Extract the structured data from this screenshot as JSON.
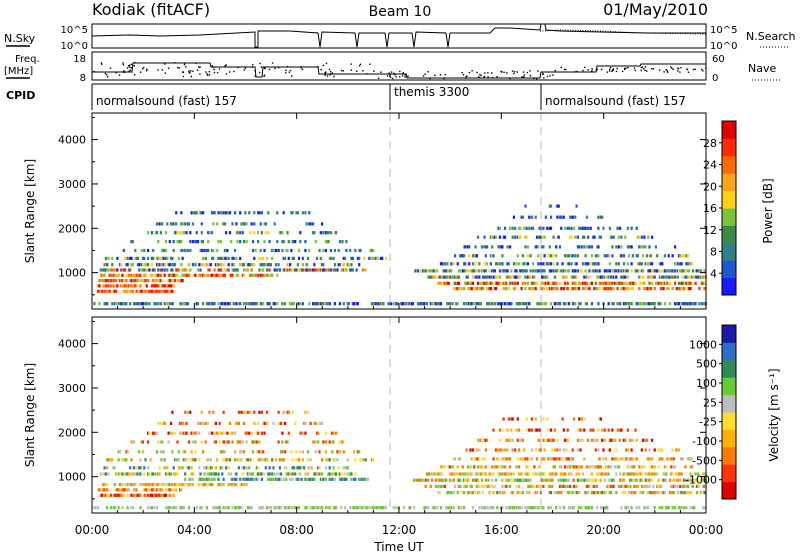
{
  "header": {
    "station": "Kodiak (fitACF)",
    "beam": "Beam 10",
    "date": "01/May/2010"
  },
  "panels": {
    "nsky": {
      "left_label": "N.Sky",
      "right_label": "N.Search",
      "left_ticks": [
        "10^5",
        "10^0"
      ],
      "right_ticks": [
        "10^5",
        "10^0"
      ]
    },
    "freq": {
      "left_label_line1": "Freq.",
      "left_label_line2": "[MHz]",
      "left_ticks": [
        "18",
        "8"
      ],
      "right_label": "Nave",
      "right_ticks": [
        "60",
        "0"
      ]
    },
    "cpid": {
      "label": "CPID",
      "segments": [
        {
          "label": "normalsound (fast) 157",
          "start": "00:00"
        },
        {
          "label": "themis 3300",
          "start": "12:00"
        },
        {
          "label": "normalsound (fast) 157",
          "start": "18:00"
        }
      ]
    }
  },
  "time_axis": {
    "title": "Time UT",
    "ticks": [
      "00:00",
      "04:00",
      "08:00",
      "12:00",
      "16:00",
      "20:00",
      "00:00"
    ]
  },
  "chart_data": [
    {
      "type": "heatmap",
      "name": "power",
      "ylabel": "Slant Range [km]",
      "yticks": [
        1000,
        2000,
        3000,
        4000
      ],
      "ylim": [
        180,
        4600
      ],
      "xlim_hours": [
        0,
        24
      ],
      "colorbar": {
        "label": "Power [dB]",
        "ticks": [
          "4",
          "8",
          "12",
          "16",
          "20",
          "24",
          "28"
        ],
        "colors": [
          "#1a1aff",
          "#1f56d4",
          "#2e7f8a",
          "#3c8a4a",
          "#7ac43a",
          "#ffd11a",
          "#ffa51a",
          "#ff6a00",
          "#ff2a00",
          "#e00000"
        ]
      },
      "bands": [
        {
          "range_km": 300,
          "hours": [
            0,
            24
          ],
          "density": 0.55,
          "level": [
            0,
            4
          ]
        },
        {
          "range_km": 580,
          "hours": [
            0.2,
            3.2
          ],
          "density": 0.6,
          "level": [
            6,
            9
          ]
        },
        {
          "range_km": 700,
          "hours": [
            0.2,
            3.2
          ],
          "density": 0.65,
          "level": [
            6,
            9
          ]
        },
        {
          "range_km": 820,
          "hours": [
            0.2,
            3.5
          ],
          "density": 0.6,
          "level": [
            5,
            9
          ]
        },
        {
          "range_km": 940,
          "hours": [
            0.3,
            7.2
          ],
          "density": 0.55,
          "level": [
            4,
            9
          ]
        },
        {
          "range_km": 1060,
          "hours": [
            0.3,
            10.8
          ],
          "density": 0.55,
          "level": [
            0,
            8
          ]
        },
        {
          "range_km": 1180,
          "hours": [
            0.4,
            10.5
          ],
          "density": 0.45,
          "level": [
            0,
            6
          ]
        },
        {
          "range_km": 1320,
          "hours": [
            0.5,
            11.5
          ],
          "density": 0.35,
          "level": [
            0,
            5
          ]
        },
        {
          "range_km": 1500,
          "hours": [
            1,
            11
          ],
          "density": 0.3,
          "level": [
            0,
            4
          ]
        },
        {
          "range_km": 1700,
          "hours": [
            1.5,
            10
          ],
          "density": 0.3,
          "level": [
            0,
            4
          ]
        },
        {
          "range_km": 1900,
          "hours": [
            2,
            9.5
          ],
          "density": 0.3,
          "level": [
            0,
            5
          ]
        },
        {
          "range_km": 2100,
          "hours": [
            2.5,
            9
          ],
          "density": 0.3,
          "level": [
            0,
            4
          ]
        },
        {
          "range_km": 2350,
          "hours": [
            3,
            8.5
          ],
          "density": 0.25,
          "level": [
            0,
            3
          ]
        },
        {
          "range_km": 640,
          "hours": [
            14,
            24
          ],
          "density": 0.55,
          "level": [
            4,
            9
          ]
        },
        {
          "range_km": 760,
          "hours": [
            13.5,
            24
          ],
          "density": 0.55,
          "level": [
            3,
            9
          ]
        },
        {
          "range_km": 900,
          "hours": [
            13,
            24
          ],
          "density": 0.55,
          "level": [
            0,
            7
          ]
        },
        {
          "range_km": 1040,
          "hours": [
            12.5,
            24
          ],
          "density": 0.6,
          "level": [
            0,
            5
          ]
        },
        {
          "range_km": 1200,
          "hours": [
            13.5,
            23.5
          ],
          "density": 0.45,
          "level": [
            0,
            5
          ]
        },
        {
          "range_km": 1380,
          "hours": [
            14,
            23.5
          ],
          "density": 0.35,
          "level": [
            0,
            5
          ]
        },
        {
          "range_km": 1580,
          "hours": [
            14.5,
            23
          ],
          "density": 0.3,
          "level": [
            0,
            4
          ]
        },
        {
          "range_km": 1800,
          "hours": [
            15,
            22
          ],
          "density": 0.3,
          "level": [
            0,
            5
          ]
        },
        {
          "range_km": 2000,
          "hours": [
            15.5,
            21.5
          ],
          "density": 0.3,
          "level": [
            0,
            4
          ]
        },
        {
          "range_km": 2250,
          "hours": [
            16,
            20
          ],
          "density": 0.25,
          "level": [
            0,
            3
          ]
        },
        {
          "range_km": 2500,
          "hours": [
            16.5,
            19.5
          ],
          "density": 0.2,
          "level": [
            0,
            3
          ]
        }
      ]
    },
    {
      "type": "heatmap",
      "name": "velocity",
      "ylabel": "Slant Range [km]",
      "yticks": [
        1000,
        2000,
        3000,
        4000
      ],
      "ylim": [
        180,
        4600
      ],
      "xlim_hours": [
        0,
        24
      ],
      "colorbar": {
        "label": "Velocity [m s⁻¹]",
        "ticks": [
          "-1000",
          "-500",
          "-100",
          "-25",
          "25",
          "100",
          "500",
          "1000"
        ],
        "colors": [
          "#e00000",
          "#ff3300",
          "#ff7a00",
          "#ffb000",
          "#ffdd33",
          "#bdbdbd",
          "#66cc33",
          "#2e8b57",
          "#2d6ec8",
          "#1a1aaa"
        ]
      },
      "bands": [
        {
          "range_km": 300,
          "hours": [
            0,
            24
          ],
          "density": 0.45,
          "level": [
            5,
            6
          ]
        },
        {
          "range_km": 580,
          "hours": [
            0.2,
            3.2
          ],
          "density": 0.55,
          "level": [
            0,
            4
          ]
        },
        {
          "range_km": 700,
          "hours": [
            0.2,
            3.5
          ],
          "density": 0.6,
          "level": [
            1,
            5
          ]
        },
        {
          "range_km": 820,
          "hours": [
            0.3,
            6
          ],
          "density": 0.55,
          "level": [
            2,
            6
          ]
        },
        {
          "range_km": 940,
          "hours": [
            3.5,
            10.8
          ],
          "density": 0.55,
          "level": [
            5,
            8
          ]
        },
        {
          "range_km": 1060,
          "hours": [
            0.3,
            10.5
          ],
          "density": 0.5,
          "level": [
            3,
            8
          ]
        },
        {
          "range_km": 1200,
          "hours": [
            0.4,
            10
          ],
          "density": 0.4,
          "level": [
            3,
            8
          ]
        },
        {
          "range_km": 1380,
          "hours": [
            0.5,
            11
          ],
          "density": 0.35,
          "level": [
            2,
            7
          ]
        },
        {
          "range_km": 1560,
          "hours": [
            1,
            10.5
          ],
          "density": 0.3,
          "level": [
            1,
            6
          ]
        },
        {
          "range_km": 1780,
          "hours": [
            1.5,
            10
          ],
          "density": 0.3,
          "level": [
            1,
            6
          ]
        },
        {
          "range_km": 1980,
          "hours": [
            2,
            9.5
          ],
          "density": 0.3,
          "level": [
            0,
            5
          ]
        },
        {
          "range_km": 2200,
          "hours": [
            2.5,
            9
          ],
          "density": 0.25,
          "level": [
            0,
            5
          ]
        },
        {
          "range_km": 2450,
          "hours": [
            3,
            8.5
          ],
          "density": 0.2,
          "level": [
            0,
            4
          ]
        },
        {
          "range_km": 640,
          "hours": [
            13.5,
            24
          ],
          "density": 0.5,
          "level": [
            2,
            7
          ]
        },
        {
          "range_km": 780,
          "hours": [
            13,
            24
          ],
          "density": 0.5,
          "level": [
            1,
            6
          ]
        },
        {
          "range_km": 920,
          "hours": [
            12.5,
            24
          ],
          "density": 0.55,
          "level": [
            2,
            7
          ]
        },
        {
          "range_km": 1060,
          "hours": [
            13,
            24
          ],
          "density": 0.5,
          "level": [
            2,
            6
          ]
        },
        {
          "range_km": 1220,
          "hours": [
            13.5,
            23.5
          ],
          "density": 0.45,
          "level": [
            1,
            6
          ]
        },
        {
          "range_km": 1400,
          "hours": [
            14,
            23.5
          ],
          "density": 0.35,
          "level": [
            1,
            5
          ]
        },
        {
          "range_km": 1600,
          "hours": [
            14.5,
            23
          ],
          "density": 0.3,
          "level": [
            0,
            5
          ]
        },
        {
          "range_km": 1820,
          "hours": [
            15,
            22
          ],
          "density": 0.3,
          "level": [
            0,
            5
          ]
        },
        {
          "range_km": 2050,
          "hours": [
            15.5,
            21.5
          ],
          "density": 0.3,
          "level": [
            0,
            4
          ]
        },
        {
          "range_km": 2300,
          "hours": [
            16,
            20
          ],
          "density": 0.25,
          "level": [
            0,
            4
          ]
        }
      ]
    }
  ]
}
